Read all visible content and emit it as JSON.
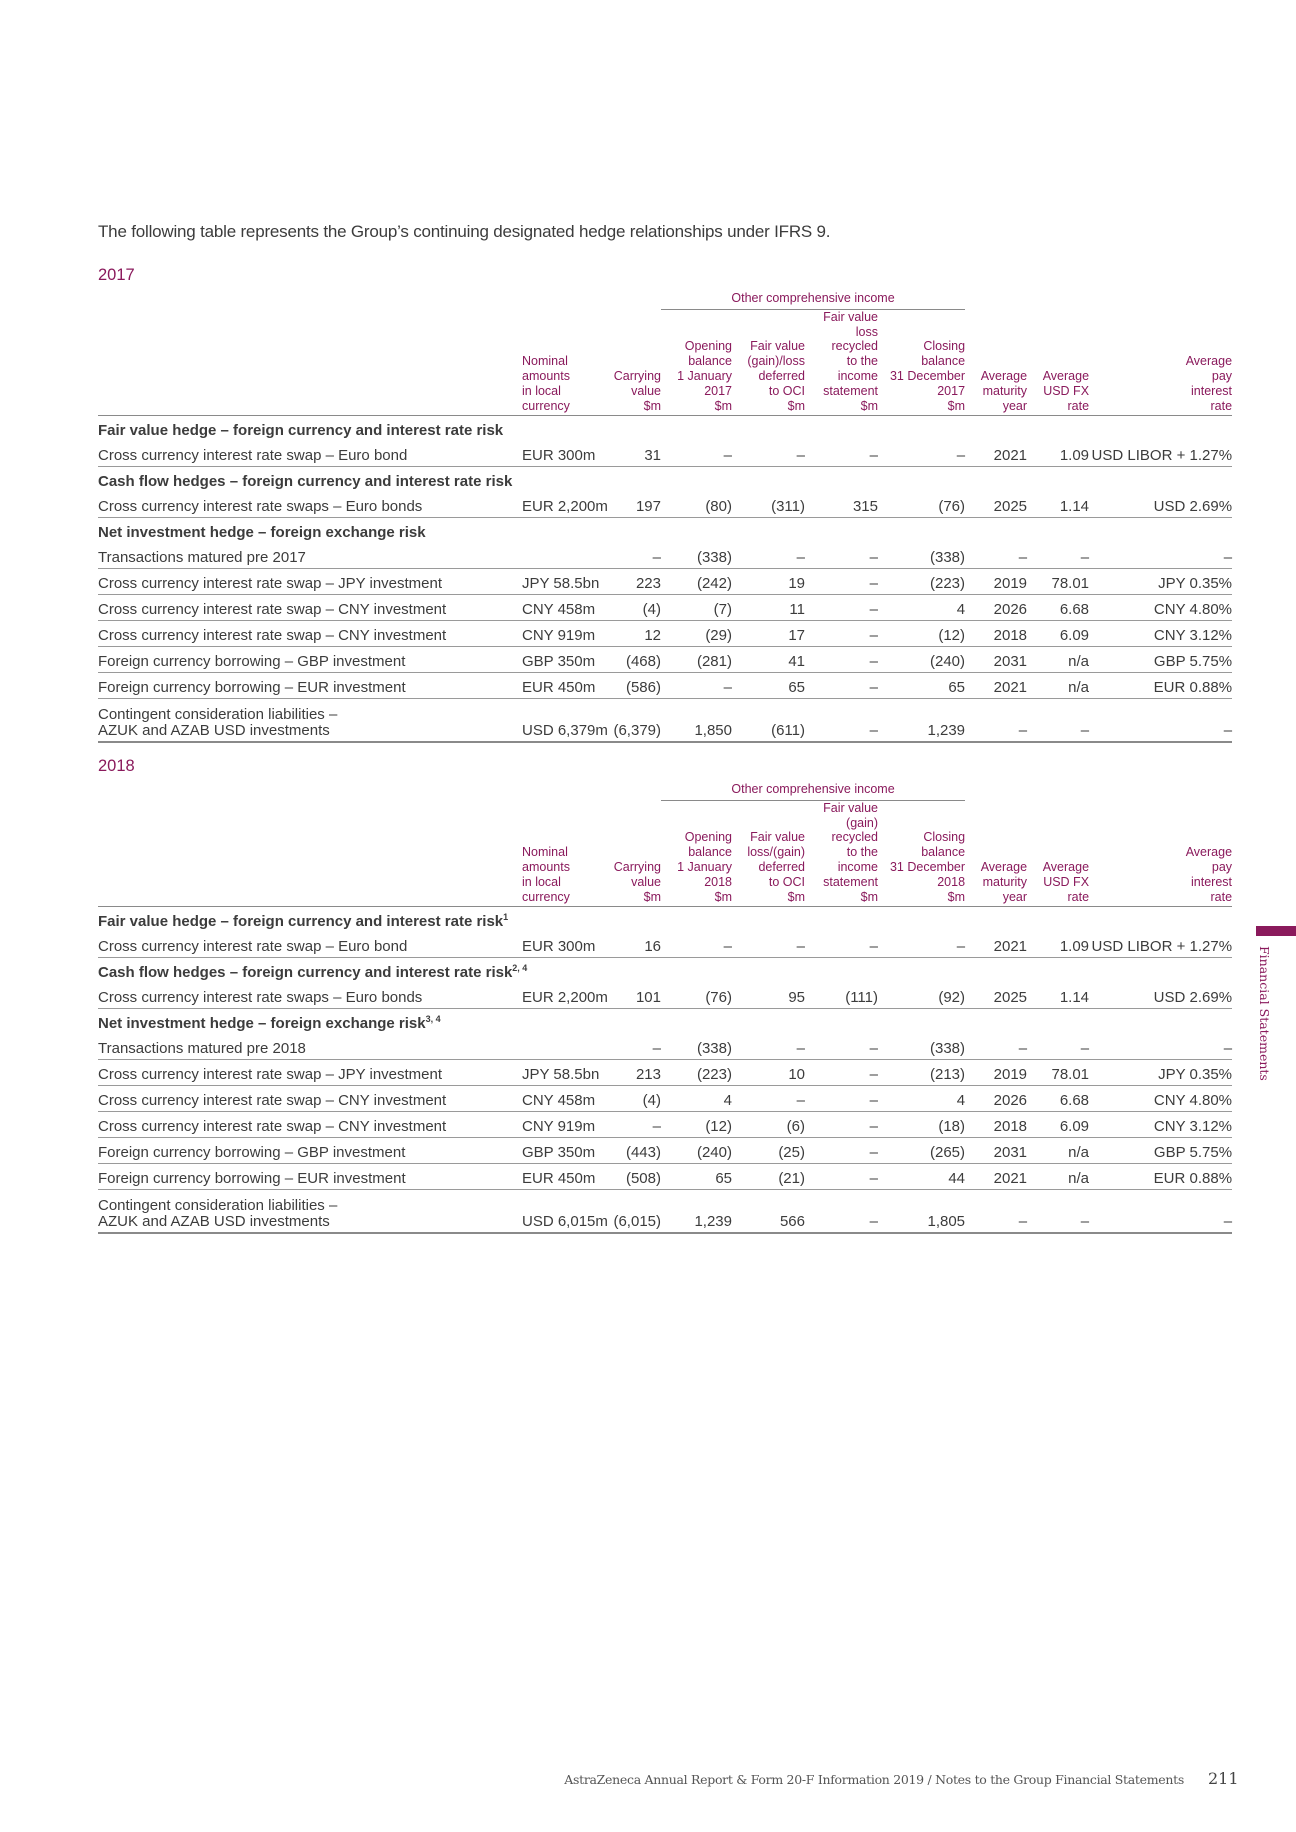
{
  "intro": "The following table represents the Group’s continuing designated hedge relationships under IFRS 9.",
  "colors": {
    "accent": "#8a1a5c",
    "text": "#3c3c3c",
    "rule": "#9a9a9a"
  },
  "sections": [
    {
      "year": "2017",
      "oci_label": "Other comprehensive income",
      "headers": [
        "",
        "Nominal\namounts\nin local\ncurrency",
        "Carrying\nvalue\n$m",
        "Opening\nbalance\n1 January\n2017\n$m",
        "Fair value\n(gain)/loss\ndeferred\nto OCI\n$m",
        "Fair value\nloss\nrecycled\nto the\nincome\nstatement\n$m",
        "Closing\nbalance\n31 December\n2017\n$m",
        "Average\nmaturity\nyear",
        "Average\nUSD FX\nrate",
        "Average\npay\ninterest\nrate"
      ],
      "groups": [
        {
          "title": "Fair value hedge – foreign currency and interest rate risk",
          "note": "",
          "rows": [
            [
              "Cross currency interest rate swap – Euro bond",
              "EUR 300m",
              "31",
              "–",
              "–",
              "–",
              "–",
              "2021",
              "1.09",
              "USD LIBOR + 1.27%"
            ]
          ]
        },
        {
          "title": "Cash flow hedges – foreign currency and interest rate risk",
          "note": "",
          "rows": [
            [
              "Cross currency interest rate swaps – Euro bonds",
              "EUR 2,200m",
              "197",
              "(80)",
              "(311)",
              "315",
              "(76)",
              "2025",
              "1.14",
              "USD 2.69%"
            ]
          ]
        },
        {
          "title": "Net investment hedge – foreign exchange risk",
          "note": "",
          "rows": [
            [
              "Transactions matured pre 2017",
              "",
              "–",
              "(338)",
              "–",
              "–",
              "(338)",
              "–",
              "–",
              "–"
            ],
            [
              "Cross currency interest rate swap – JPY investment",
              "JPY 58.5bn",
              "223",
              "(242)",
              "19",
              "–",
              "(223)",
              "2019",
              "78.01",
              "JPY 0.35%"
            ],
            [
              "Cross currency interest rate swap – CNY investment",
              "CNY 458m",
              "(4)",
              "(7)",
              "11",
              "–",
              "4",
              "2026",
              "6.68",
              "CNY 4.80%"
            ],
            [
              "Cross currency interest rate swap – CNY investment",
              "CNY 919m",
              "12",
              "(29)",
              "17",
              "–",
              "(12)",
              "2018",
              "6.09",
              "CNY 3.12%"
            ],
            [
              "Foreign currency borrowing – GBP investment",
              "GBP 350m",
              "(468)",
              "(281)",
              "41",
              "–",
              "(240)",
              "2031",
              "n/a",
              "GBP 5.75%"
            ],
            [
              "Foreign currency borrowing – EUR investment",
              "EUR 450m",
              "(586)",
              "–",
              "65",
              "–",
              "65",
              "2021",
              "n/a",
              "EUR 0.88%"
            ],
            [
              "Contingent consideration liabilities –\nAZUK and AZAB USD investments",
              "USD 6,379m",
              "(6,379)",
              "1,850",
              "(611)",
              "–",
              "1,239",
              "–",
              "–",
              "–"
            ]
          ]
        }
      ]
    },
    {
      "year": "2018",
      "oci_label": "Other comprehensive income",
      "headers": [
        "",
        "Nominal\namounts\nin local\ncurrency",
        "Carrying\nvalue\n$m",
        "Opening\nbalance\n1 January\n2018\n$m",
        "Fair value\nloss/(gain)\ndeferred\nto OCI\n$m",
        "Fair value\n(gain)\nrecycled\nto the\nincome\nstatement\n$m",
        "Closing\nbalance\n31 December\n2018\n$m",
        "Average\nmaturity\nyear",
        "Average\nUSD FX\nrate",
        "Average\npay\ninterest\nrate"
      ],
      "groups": [
        {
          "title": "Fair value hedge – foreign currency and interest rate risk",
          "note": "1",
          "rows": [
            [
              "Cross currency interest rate swap – Euro bond",
              "EUR 300m",
              "16",
              "–",
              "–",
              "–",
              "–",
              "2021",
              "1.09",
              "USD LIBOR + 1.27%"
            ]
          ]
        },
        {
          "title": "Cash flow hedges – foreign currency and interest rate risk",
          "note": "2, 4",
          "rows": [
            [
              "Cross currency interest rate swaps – Euro bonds",
              "EUR 2,200m",
              "101",
              "(76)",
              "95",
              "(111)",
              "(92)",
              "2025",
              "1.14",
              "USD 2.69%"
            ]
          ]
        },
        {
          "title": "Net investment hedge – foreign exchange risk",
          "note": "3, 4",
          "rows": [
            [
              "Transactions matured pre 2018",
              "",
              "–",
              "(338)",
              "–",
              "–",
              "(338)",
              "–",
              "–",
              "–"
            ],
            [
              "Cross currency interest rate swap – JPY investment",
              "JPY 58.5bn",
              "213",
              "(223)",
              "10",
              "–",
              "(213)",
              "2019",
              "78.01",
              "JPY 0.35%"
            ],
            [
              "Cross currency interest rate swap – CNY investment",
              "CNY 458m",
              "(4)",
              "4",
              "–",
              "–",
              "4",
              "2026",
              "6.68",
              "CNY 4.80%"
            ],
            [
              "Cross currency interest rate swap – CNY investment",
              "CNY 919m",
              "–",
              "(12)",
              "(6)",
              "–",
              "(18)",
              "2018",
              "6.09",
              "CNY 3.12%"
            ],
            [
              "Foreign currency borrowing – GBP investment",
              "GBP 350m",
              "(443)",
              "(240)",
              "(25)",
              "–",
              "(265)",
              "2031",
              "n/a",
              "GBP 5.75%"
            ],
            [
              "Foreign currency borrowing – EUR investment",
              "EUR 450m",
              "(508)",
              "65",
              "(21)",
              "–",
              "44",
              "2021",
              "n/a",
              "EUR 0.88%"
            ],
            [
              "Contingent consideration liabilities –\nAZUK and AZAB USD investments",
              "USD 6,015m",
              "(6,015)",
              "1,239",
              "566",
              "–",
              "1,805",
              "–",
              "–",
              "–"
            ]
          ]
        }
      ]
    }
  ],
  "side_tab": "Financial Statements",
  "footer": {
    "text": "AstraZeneca Annual Report & Form 20-F Information 2019 / Notes to the Group Financial Statements",
    "page": "211"
  }
}
